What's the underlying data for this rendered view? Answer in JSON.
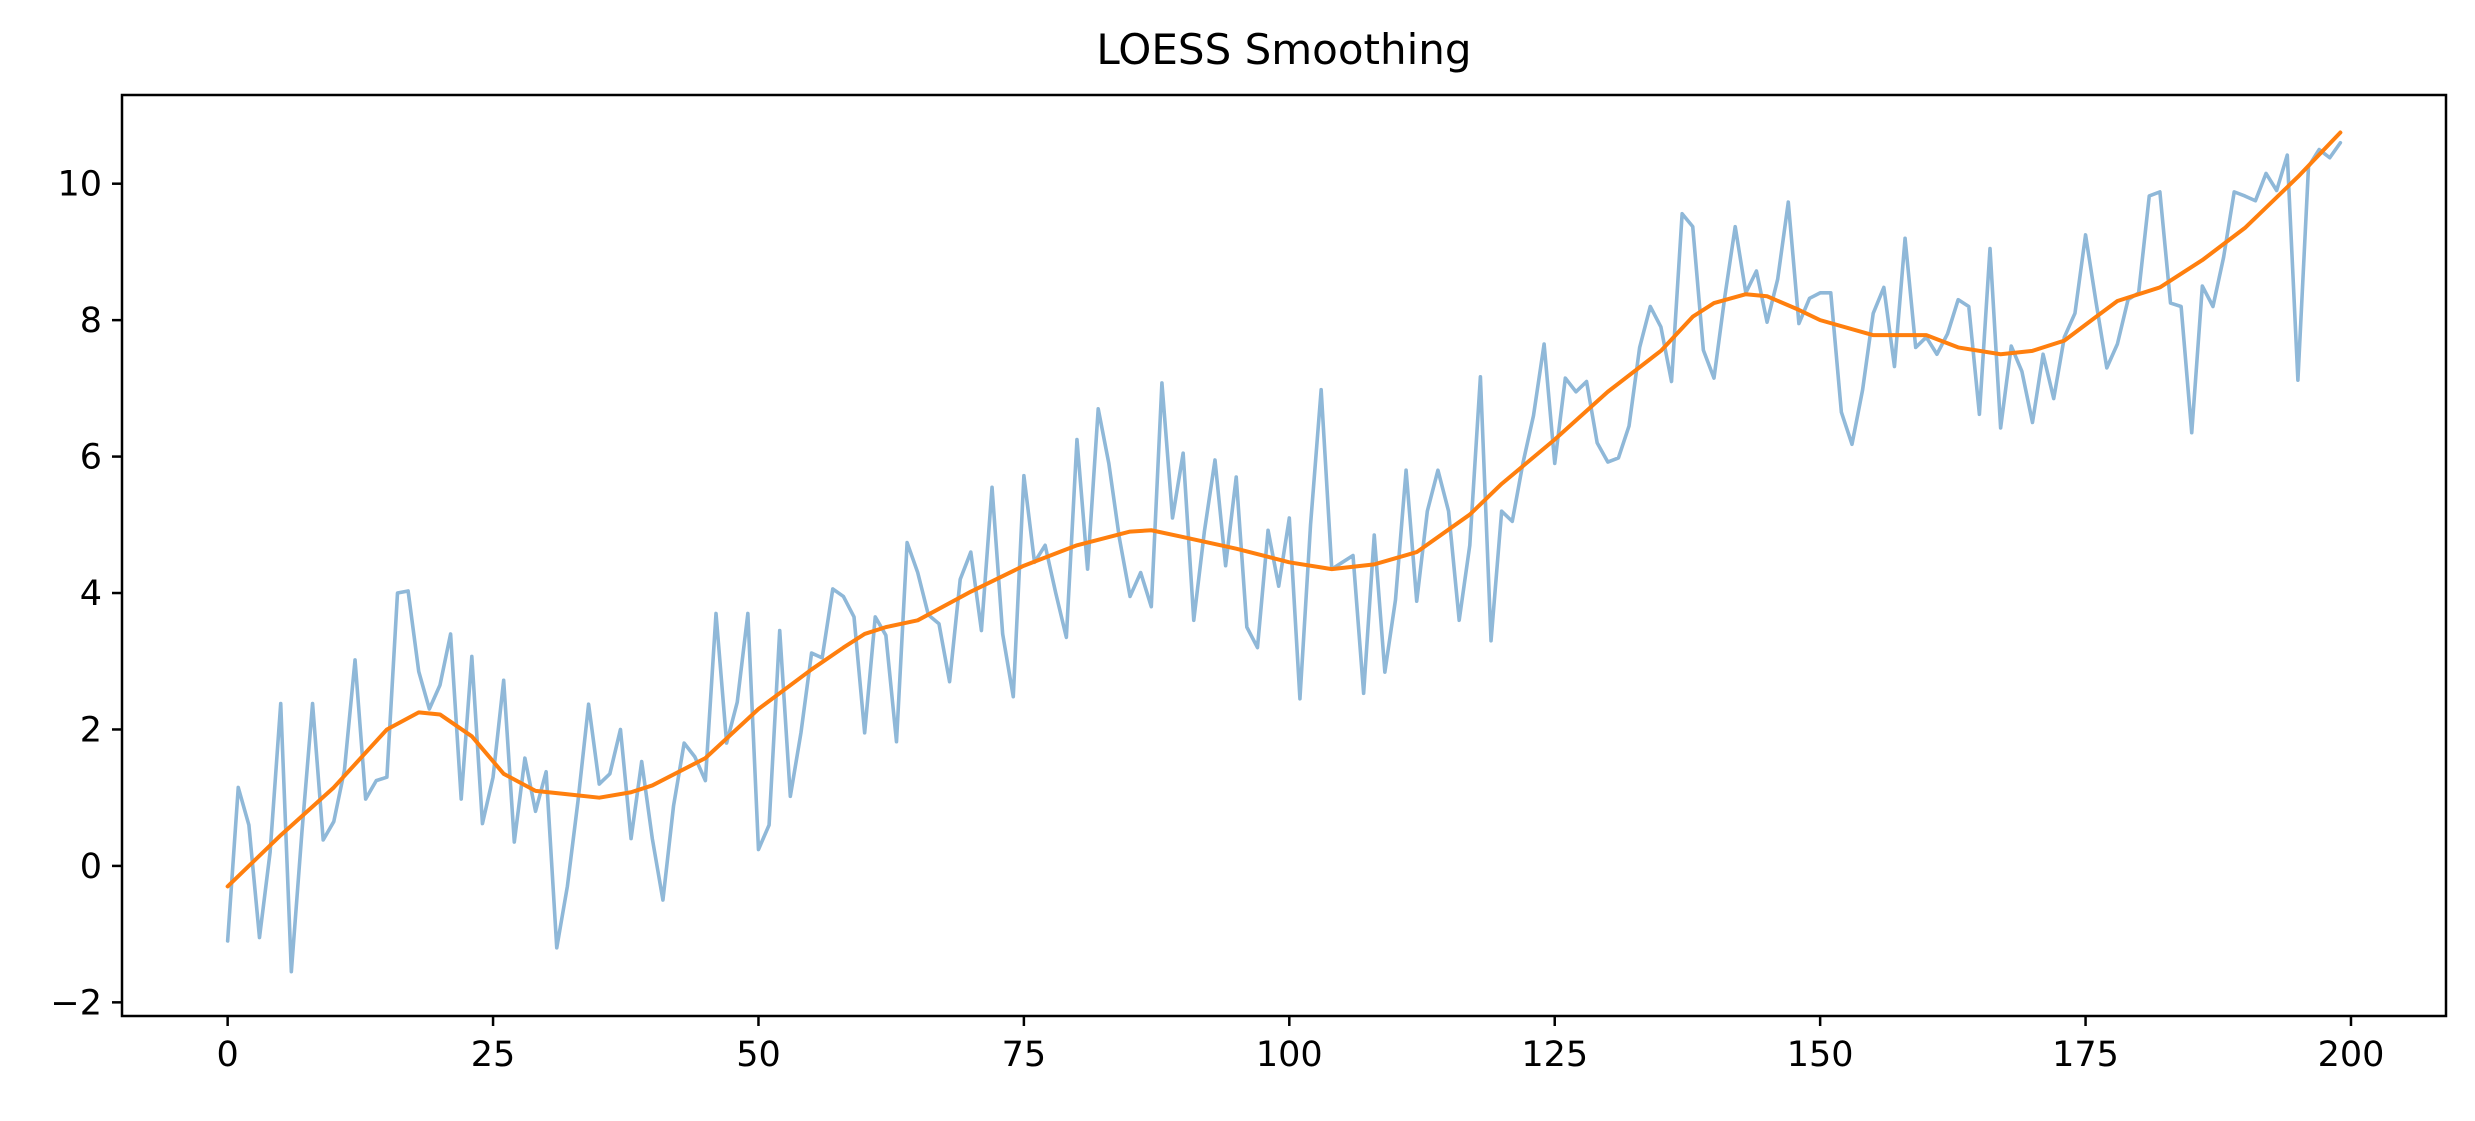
{
  "chart_data": {
    "type": "line",
    "title": "LOESS Smoothing",
    "xlabel": "",
    "ylabel": "",
    "xlim": [
      -9.95,
      208.95
    ],
    "ylim": [
      -2.2,
      11.3
    ],
    "xticks": [
      0,
      25,
      50,
      75,
      100,
      125,
      150,
      175,
      200
    ],
    "yticks": [
      -2,
      0,
      2,
      4,
      6,
      8,
      10
    ],
    "xtick_labels": [
      "0",
      "25",
      "50",
      "75",
      "100",
      "125",
      "150",
      "175",
      "200"
    ],
    "ytick_labels": [
      "−2",
      "0",
      "2",
      "4",
      "6",
      "8",
      "10"
    ],
    "grid": false,
    "legend": "none",
    "series": [
      {
        "style": "raw",
        "color": "#8fb8d8",
        "x": [
          0,
          1,
          2,
          3,
          4,
          5,
          6,
          7,
          8,
          9,
          10,
          11,
          12,
          13,
          14,
          15,
          16,
          17,
          18,
          19,
          20,
          21,
          22,
          23,
          24,
          25,
          26,
          27,
          28,
          29,
          30,
          31,
          32,
          33,
          34,
          35,
          36,
          37,
          38,
          39,
          40,
          41,
          42,
          43,
          44,
          45,
          46,
          47,
          48,
          49,
          50,
          51,
          52,
          53,
          54,
          55,
          56,
          57,
          58,
          59,
          60,
          61,
          62,
          63,
          64,
          65,
          66,
          67,
          68,
          69,
          70,
          71,
          72,
          73,
          74,
          75,
          76,
          77,
          78,
          79,
          80,
          81,
          82,
          83,
          84,
          85,
          86,
          87,
          88,
          89,
          90,
          91,
          92,
          93,
          94,
          95,
          96,
          97,
          98,
          99,
          100,
          101,
          102,
          103,
          104,
          105,
          106,
          107,
          108,
          109,
          110,
          111,
          112,
          113,
          114,
          115,
          116,
          117,
          118,
          119,
          120,
          121,
          122,
          123,
          124,
          125,
          126,
          127,
          128,
          129,
          130,
          131,
          132,
          133,
          134,
          135,
          136,
          137,
          138,
          139,
          140,
          141,
          142,
          143,
          144,
          145,
          146,
          147,
          148,
          149,
          150,
          151,
          152,
          153,
          154,
          155,
          156,
          157,
          158,
          159,
          160,
          161,
          162,
          163,
          164,
          165,
          166,
          167,
          168,
          169,
          170,
          171,
          172,
          173,
          174,
          175,
          176,
          177,
          178,
          179,
          180,
          181,
          182,
          183,
          184,
          185,
          186,
          187,
          188,
          189,
          190,
          191,
          192,
          193,
          194,
          195,
          196,
          197,
          198,
          199
        ],
        "y": [
          -1.1,
          1.15,
          0.6,
          -1.05,
          0.2,
          2.38,
          -1.55,
          0.5,
          2.38,
          0.38,
          0.65,
          1.4,
          3.02,
          0.98,
          1.25,
          1.3,
          4.0,
          4.03,
          2.85,
          2.3,
          2.65,
          3.4,
          0.98,
          3.07,
          0.62,
          1.3,
          2.72,
          0.35,
          1.58,
          0.8,
          1.38,
          -1.2,
          -0.3,
          0.95,
          2.37,
          1.2,
          1.35,
          2.0,
          0.4,
          1.53,
          0.4,
          -0.5,
          0.88,
          1.8,
          1.6,
          1.25,
          3.7,
          1.8,
          2.4,
          3.7,
          0.24,
          0.6,
          3.45,
          1.02,
          1.95,
          3.12,
          3.05,
          4.06,
          3.95,
          3.65,
          1.95,
          3.65,
          3.38,
          1.82,
          4.74,
          4.3,
          3.68,
          3.55,
          2.7,
          4.2,
          4.6,
          3.45,
          5.55,
          3.4,
          2.48,
          5.72,
          4.45,
          4.7,
          4.0,
          3.35,
          6.25,
          4.35,
          6.7,
          5.9,
          4.8,
          3.95,
          4.3,
          3.8,
          7.08,
          5.1,
          6.05,
          3.6,
          4.9,
          5.95,
          4.4,
          5.7,
          3.5,
          3.2,
          4.92,
          4.1,
          5.1,
          2.45,
          5.0,
          6.98,
          4.35,
          4.45,
          4.55,
          2.53,
          4.85,
          2.84,
          3.9,
          5.8,
          3.88,
          5.2,
          5.8,
          5.2,
          3.6,
          4.7,
          7.17,
          3.3,
          5.2,
          5.05,
          5.9,
          6.6,
          7.65,
          5.9,
          7.15,
          6.95,
          7.1,
          6.2,
          5.92,
          5.98,
          6.45,
          7.6,
          8.2,
          7.9,
          7.1,
          9.56,
          9.37,
          7.56,
          7.15,
          8.32,
          9.37,
          8.4,
          8.72,
          7.97,
          8.6,
          9.73,
          7.95,
          8.32,
          8.4,
          8.4,
          6.65,
          6.18,
          6.98,
          8.1,
          8.48,
          7.32,
          9.2,
          7.6,
          7.75,
          7.5,
          7.8,
          8.3,
          8.2,
          6.62,
          9.05,
          6.42,
          7.62,
          7.25,
          6.5,
          7.5,
          6.85,
          7.75,
          8.1,
          9.25,
          8.25,
          7.3,
          7.65,
          8.3,
          8.4,
          9.82,
          9.88,
          8.25,
          8.2,
          6.35,
          8.5,
          8.2,
          8.92,
          9.88,
          9.82,
          9.75,
          10.15,
          9.9,
          10.42,
          7.12,
          10.25,
          10.5,
          10.38,
          10.6
        ]
      },
      {
        "style": "loess",
        "color": "#ff7f0e",
        "x": [
          0,
          5,
          10,
          15,
          18,
          20,
          23,
          26,
          29,
          32,
          35,
          38,
          40,
          45,
          50,
          55,
          58,
          60,
          62,
          65,
          70,
          75,
          80,
          85,
          87,
          90,
          95,
          100,
          104,
          108,
          112,
          117,
          120,
          125,
          130,
          135,
          138,
          140,
          143,
          145,
          148,
          150,
          155,
          160,
          163,
          167,
          170,
          173,
          176,
          178,
          182,
          186,
          190,
          195,
          199
        ],
        "y": [
          -0.3,
          0.45,
          1.15,
          2.0,
          2.25,
          2.22,
          1.9,
          1.35,
          1.1,
          1.05,
          1.0,
          1.08,
          1.18,
          1.58,
          2.3,
          2.88,
          3.2,
          3.4,
          3.5,
          3.6,
          4.02,
          4.4,
          4.7,
          4.9,
          4.92,
          4.82,
          4.65,
          4.45,
          4.35,
          4.42,
          4.6,
          5.15,
          5.6,
          6.25,
          6.95,
          7.55,
          8.05,
          8.25,
          8.38,
          8.35,
          8.15,
          8.0,
          7.78,
          7.78,
          7.6,
          7.5,
          7.55,
          7.7,
          8.05,
          8.28,
          8.48,
          8.88,
          9.35,
          10.1,
          10.75
        ]
      }
    ]
  }
}
